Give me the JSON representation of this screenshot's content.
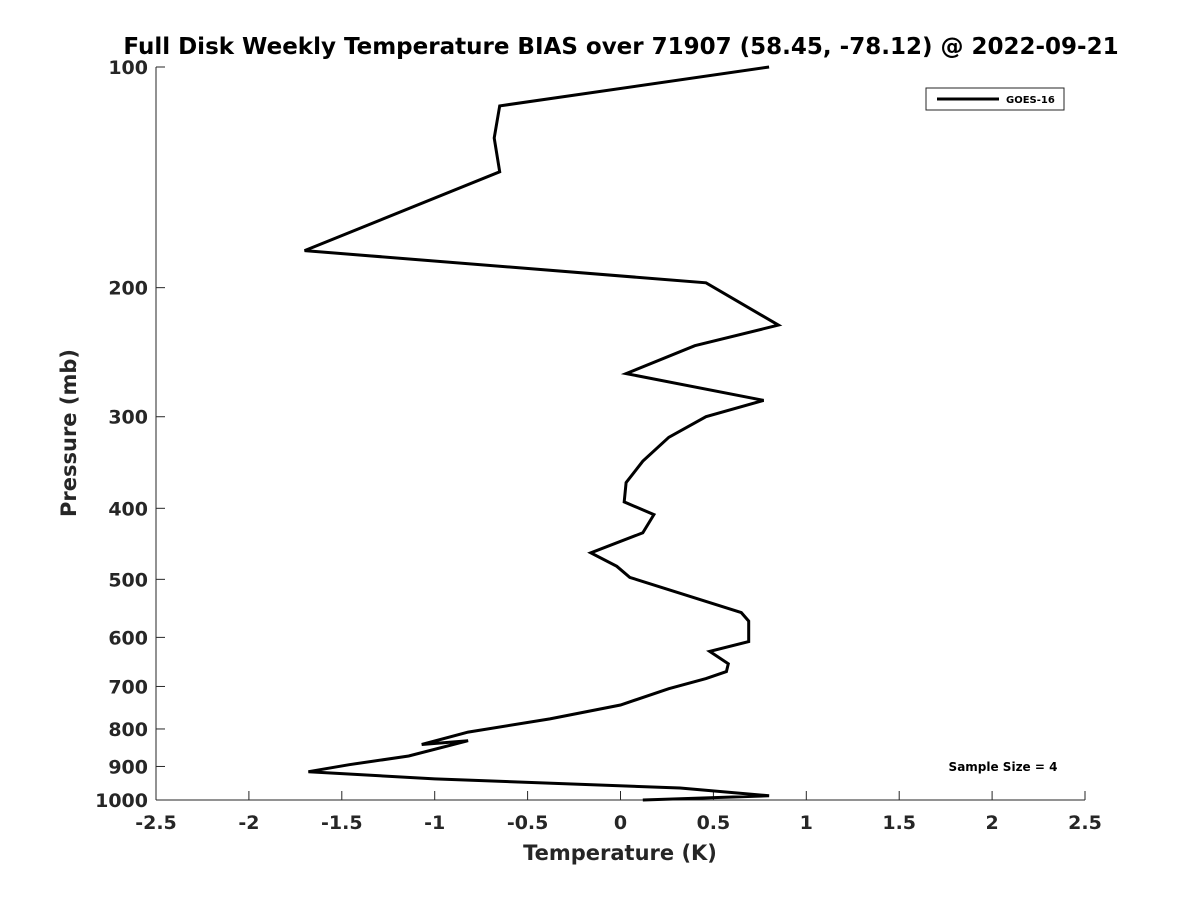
{
  "chart_data": {
    "type": "line",
    "title": "Full Disk Weekly Temperature BIAS over 71907 (58.45, -78.12) @ 2022-09-21",
    "xlabel": "Temperature (K)",
    "ylabel": "Pressure (mb)",
    "xlim": [
      -2.5,
      2.5
    ],
    "ylim": [
      100,
      1000
    ],
    "y_scale": "log",
    "y_reversed": true,
    "grid": false,
    "x_ticks": [
      -2.5,
      -2,
      -1.5,
      -1,
      -0.5,
      0,
      0.5,
      1,
      1.5,
      2,
      2.5
    ],
    "x_tick_labels": [
      "-2.5",
      "-2",
      "-1.5",
      "-1",
      "-0.5",
      "0",
      "0.5",
      "1",
      "1.5",
      "2",
      "2.5"
    ],
    "y_ticks": [
      100,
      200,
      300,
      400,
      500,
      600,
      700,
      800,
      900,
      1000
    ],
    "y_tick_labels": [
      "100",
      "200",
      "300",
      "400",
      "500",
      "600",
      "700",
      "800",
      "900",
      "1000"
    ],
    "legend_position": "top-right",
    "annotation": "Sample Size = 4",
    "series": [
      {
        "name": "GOES-16",
        "color": "#000000",
        "x": [
          0.8,
          -0.65,
          -0.68,
          -0.65,
          -1.7,
          0.46,
          0.85,
          0.4,
          0.03,
          0.77,
          0.46,
          0.26,
          0.12,
          0.03,
          0.02,
          0.18,
          0.12,
          -0.16,
          -0.02,
          0.05,
          0.65,
          0.69,
          0.69,
          0.48,
          0.58,
          0.57,
          0.46,
          0.26,
          0.0,
          -0.38,
          -0.82,
          -1.07,
          -0.82,
          -1.14,
          -1.46,
          -1.68,
          -1.0,
          0.32,
          0.8,
          0.12
        ],
        "y": [
          100,
          113,
          125,
          139,
          178,
          197,
          225,
          240,
          262,
          285,
          300,
          320,
          345,
          369,
          392,
          408,
          432,
          460,
          480,
          497,
          555,
          570,
          608,
          627,
          652,
          668,
          683,
          705,
          742,
          775,
          808,
          840,
          830,
          871,
          895,
          915,
          936,
          963,
          987,
          1000
        ]
      }
    ]
  }
}
